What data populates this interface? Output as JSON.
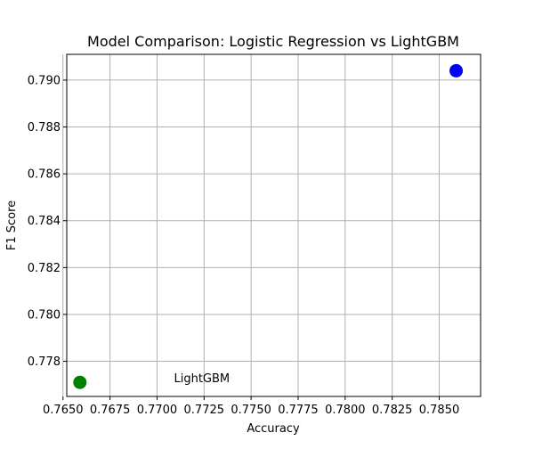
{
  "chart_data": {
    "type": "scatter",
    "title": "Model Comparison: Logistic Regression vs LightGBM",
    "xlabel": "Accuracy",
    "ylabel": "F1 Score",
    "xlim": [
      0.7652,
      0.7872
    ],
    "ylim": [
      0.7765,
      0.7911
    ],
    "grid": true,
    "x_ticks": [
      "0.7650",
      "0.7675",
      "0.7700",
      "0.7725",
      "0.7750",
      "0.7775",
      "0.7800",
      "0.7825",
      "0.7850"
    ],
    "x_tick_values": [
      0.765,
      0.7675,
      0.77,
      0.7725,
      0.775,
      0.7775,
      0.78,
      0.7825,
      0.785
    ],
    "y_ticks": [
      "0.778",
      "0.780",
      "0.782",
      "0.784",
      "0.786",
      "0.788",
      "0.790"
    ],
    "y_tick_values": [
      0.778,
      0.78,
      0.782,
      0.784,
      0.786,
      0.788,
      0.79
    ],
    "points": [
      {
        "x": 0.7859,
        "y": 0.7904,
        "color": "#0000ff"
      },
      {
        "x": 0.7659,
        "y": 0.7771,
        "color": "#008000"
      }
    ],
    "annotations": [
      {
        "text": "LightGBM",
        "x": 0.7709,
        "y": 0.7771
      }
    ]
  }
}
